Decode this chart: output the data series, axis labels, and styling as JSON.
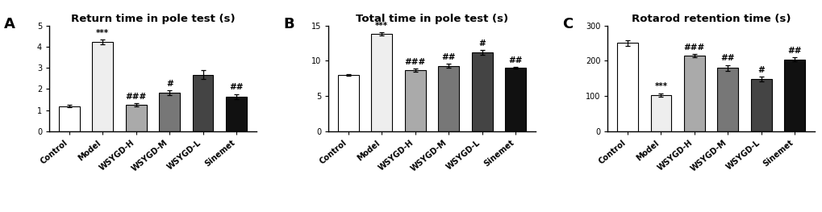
{
  "panels": [
    {
      "label": "A",
      "title": "Return time in pole test (s)",
      "categories": [
        "Control",
        "Model",
        "WSYGD-H",
        "WSYGD-M",
        "WSYGD-L",
        "Sinemet"
      ],
      "values": [
        1.2,
        4.22,
        1.25,
        1.83,
        2.68,
        1.65
      ],
      "errors": [
        0.07,
        0.1,
        0.07,
        0.1,
        0.22,
        0.12
      ],
      "colors": [
        "#ffffff",
        "#eeeeee",
        "#aaaaaa",
        "#777777",
        "#444444",
        "#111111"
      ],
      "ylim": [
        0,
        5
      ],
      "yticks": [
        0,
        1,
        2,
        3,
        4,
        5
      ],
      "significance_above": [
        "",
        "***",
        "###",
        "#",
        "",
        "##"
      ]
    },
    {
      "label": "B",
      "title": "Total time in pole test (s)",
      "categories": [
        "Control",
        "Model",
        "WSYGD-H",
        "WSYGD-M",
        "WSYGD-L",
        "Sinemet"
      ],
      "values": [
        8.0,
        13.8,
        8.65,
        9.3,
        11.2,
        9.0
      ],
      "errors": [
        0.15,
        0.2,
        0.2,
        0.3,
        0.3,
        0.15
      ],
      "colors": [
        "#ffffff",
        "#eeeeee",
        "#aaaaaa",
        "#777777",
        "#444444",
        "#111111"
      ],
      "ylim": [
        0,
        15
      ],
      "yticks": [
        0,
        5,
        10,
        15
      ],
      "significance_above": [
        "",
        "***",
        "###",
        "##",
        "#",
        "##"
      ]
    },
    {
      "label": "C",
      "title": "Rotarod retention time (s)",
      "categories": [
        "Control",
        "Model",
        "WSYGD-H",
        "WSYGD-M",
        "WSYGD-L",
        "Sinemet"
      ],
      "values": [
        250,
        103,
        214,
        180,
        148,
        204
      ],
      "errors": [
        8,
        5,
        5,
        8,
        7,
        6
      ],
      "colors": [
        "#ffffff",
        "#eeeeee",
        "#aaaaaa",
        "#777777",
        "#444444",
        "#111111"
      ],
      "ylim": [
        0,
        300
      ],
      "yticks": [
        0,
        100,
        200,
        300
      ],
      "significance_above": [
        "",
        "***",
        "###",
        "##",
        "#",
        "##"
      ]
    }
  ],
  "background_color": "#ffffff",
  "bar_edge_color": "#000000",
  "error_color": "#000000",
  "title_fontsize": 9.5,
  "panel_label_fontsize": 13,
  "tick_fontsize": 7,
  "sig_fontsize": 7.5,
  "bar_width": 0.62
}
